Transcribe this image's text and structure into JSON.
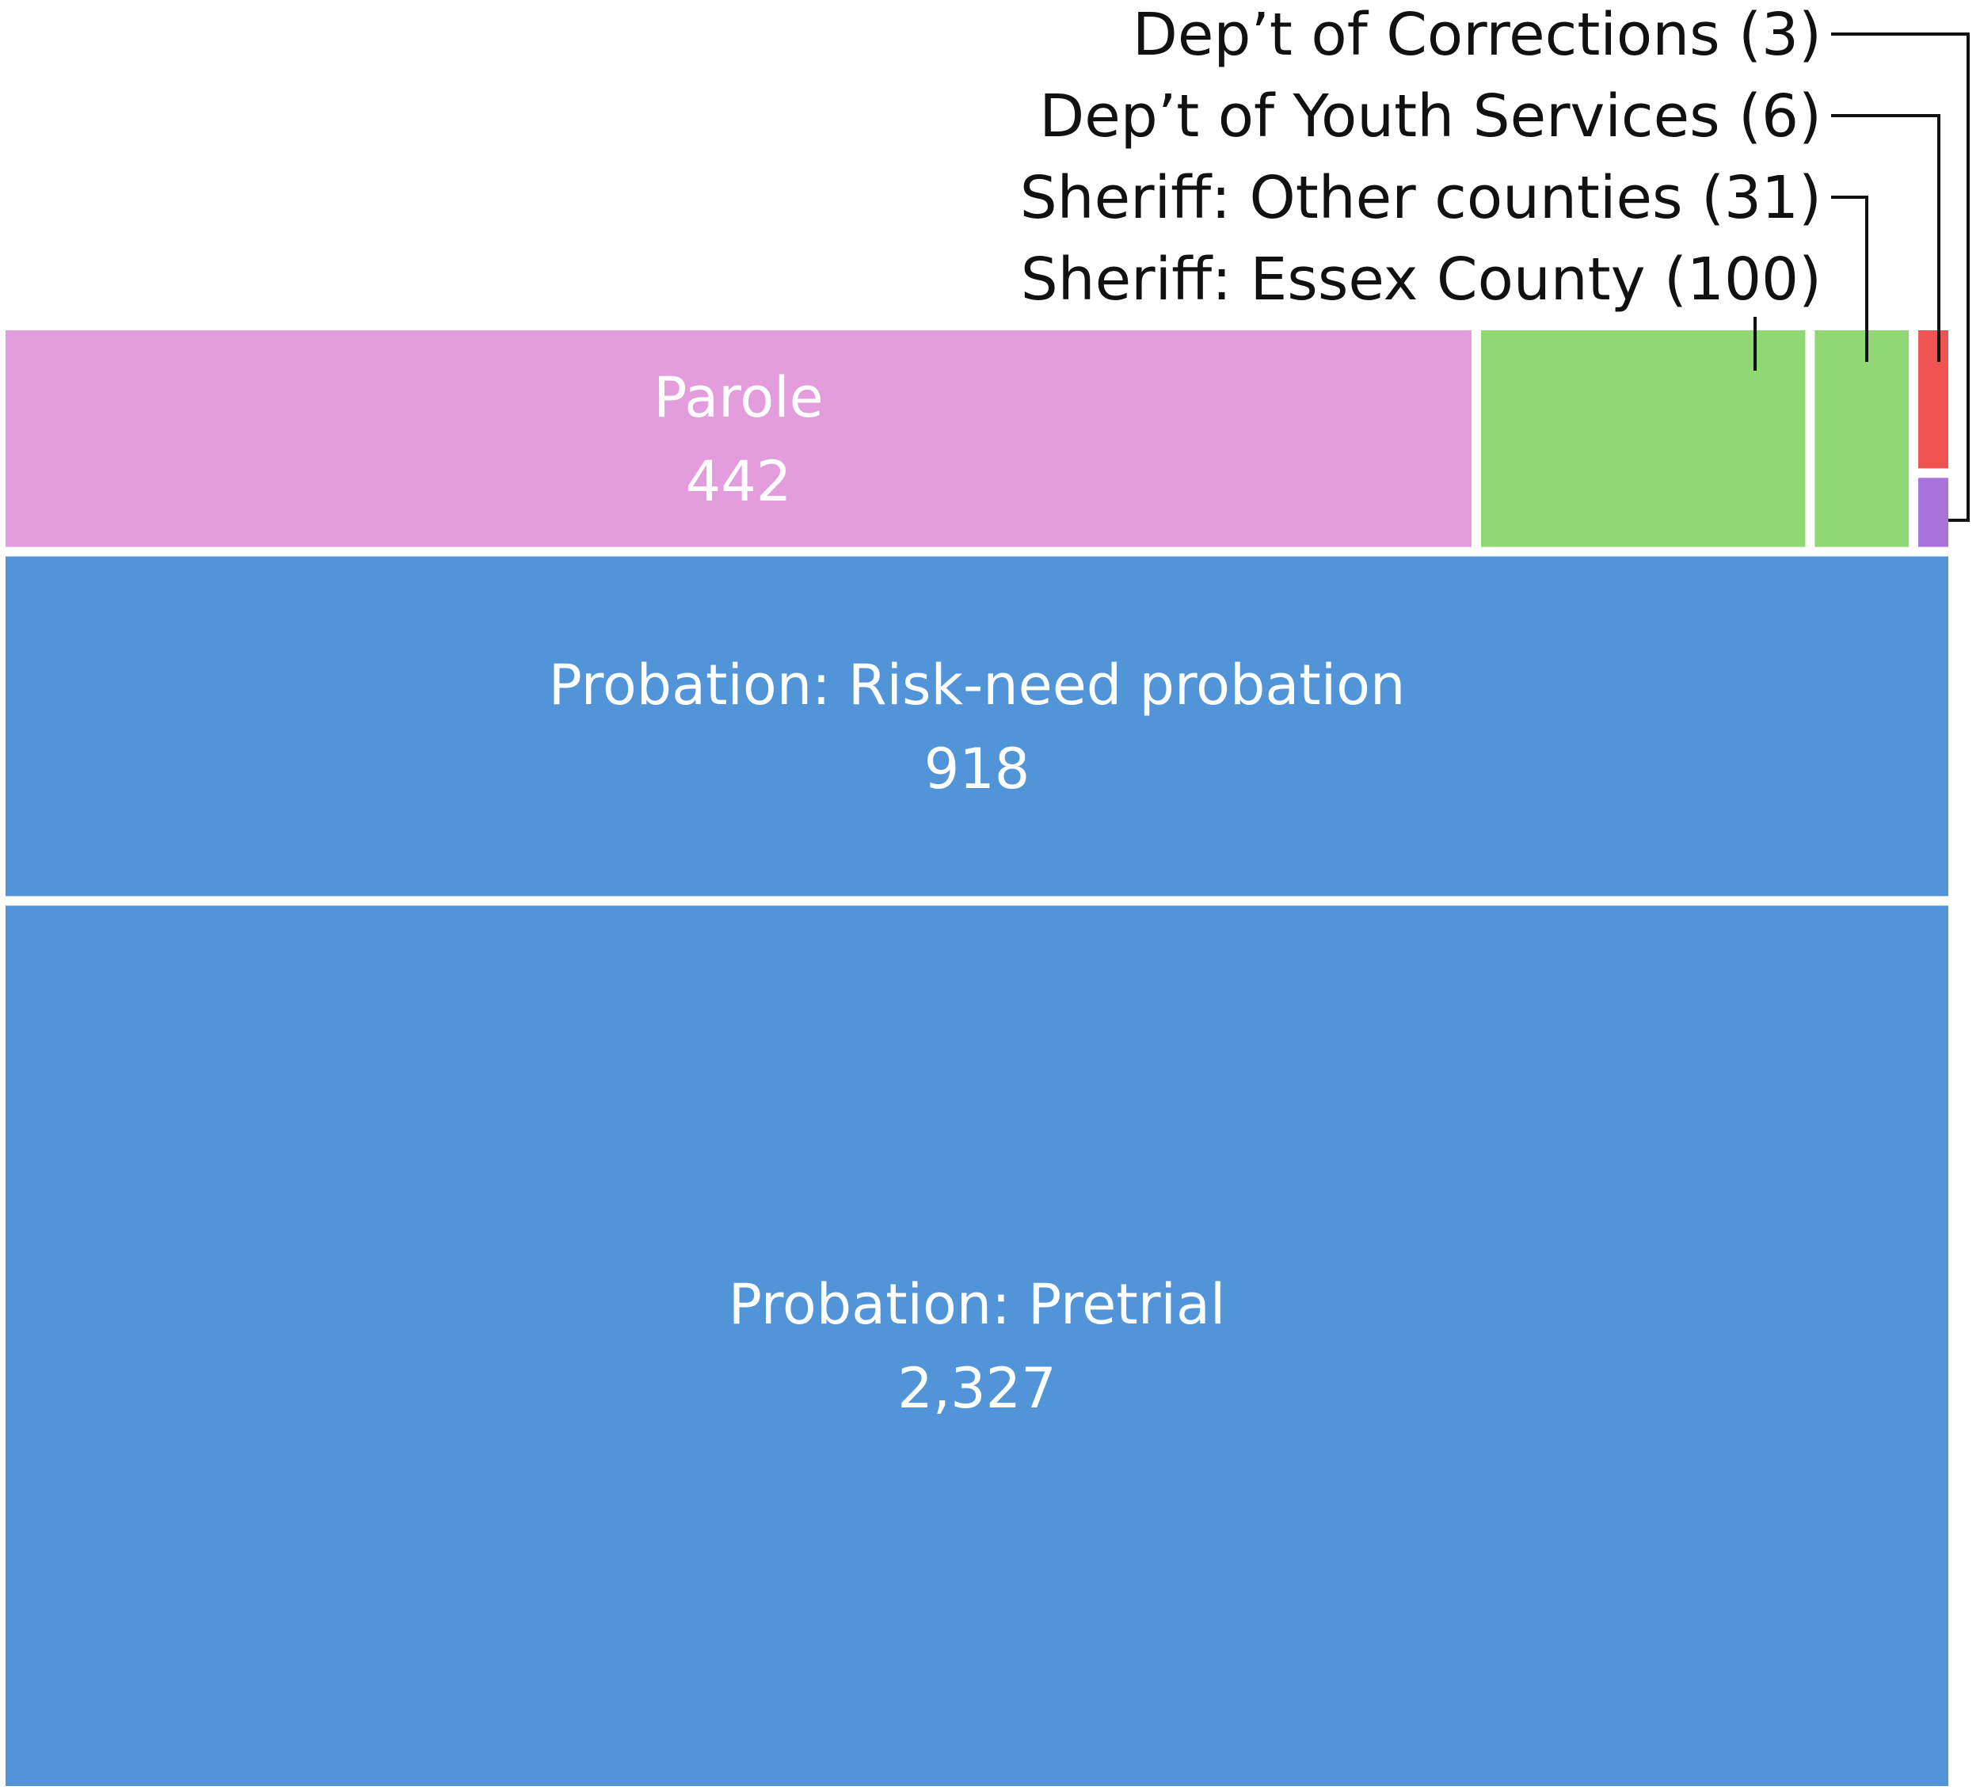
{
  "chart_data": {
    "type": "treemap",
    "title": "",
    "cells": [
      {
        "label": "Parole",
        "value": 442,
        "value_text": "442",
        "color": "#e39ddd"
      },
      {
        "label": "Probation: Risk-need probation",
        "value": 918,
        "value_text": "918",
        "color": "#5194d8"
      },
      {
        "label": "Probation: Pretrial",
        "value": 2327,
        "value_text": "2,327",
        "color": "#5194d8"
      },
      {
        "label": "Sheriff: Essex County",
        "value": 100,
        "value_text": "100",
        "color": "#8fd873"
      },
      {
        "label": "Sheriff: Other counties",
        "value": 31,
        "value_text": "31",
        "color": "#8fd873"
      },
      {
        "label": "Dep’t of Youth Services",
        "value": 6,
        "value_text": "6",
        "color": "#ef5451"
      },
      {
        "label": "Dep’t of Corrections",
        "value": 3,
        "value_text": "3",
        "color": "#a973dc"
      }
    ],
    "callouts": [
      {
        "text": "Dep’t of Corrections (3)",
        "cell": "Dep’t of Corrections"
      },
      {
        "text": "Dep’t of Youth Services (6)",
        "cell": "Dep’t of Youth Services"
      },
      {
        "text": "Sheriff: Other counties (31)",
        "cell": "Sheriff: Other counties"
      },
      {
        "text": "Sheriff: Essex County (100)",
        "cell": "Sheriff: Essex County"
      }
    ]
  }
}
